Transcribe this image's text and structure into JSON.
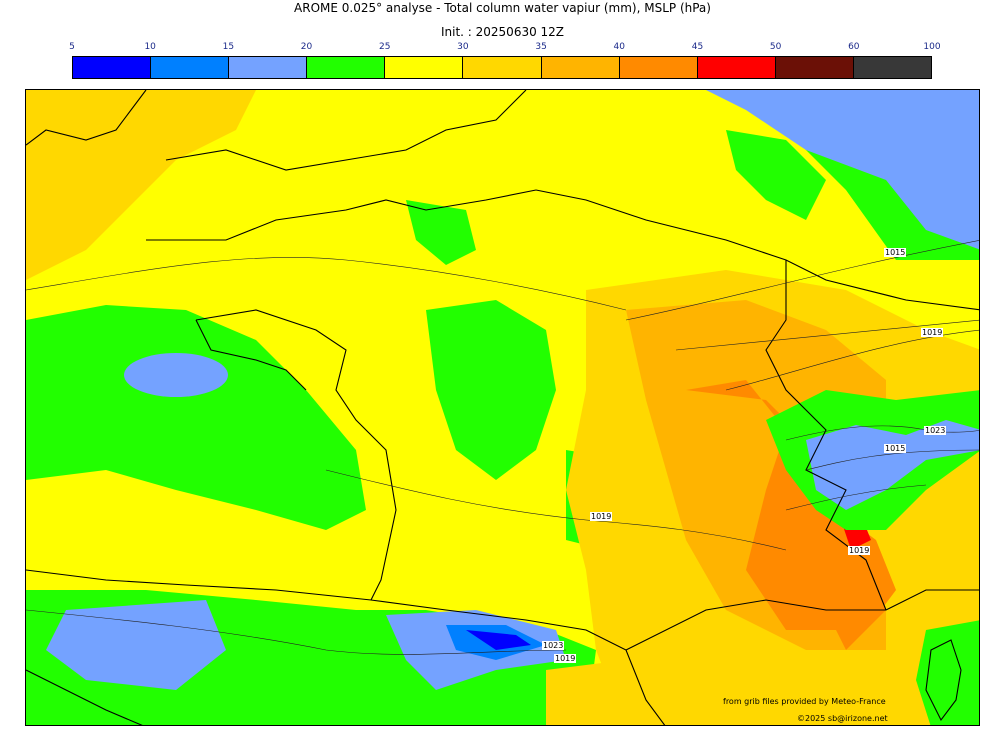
{
  "header": {
    "title": "AROME 0.025° analyse - Total column water vapiur (mm), MSLP (hPa)",
    "init": "Init. : 20250630 12Z"
  },
  "colorbar": {
    "ticks": [
      "5",
      "10",
      "15",
      "20",
      "25",
      "30",
      "35",
      "40",
      "45",
      "50",
      "60",
      "100"
    ],
    "colors": [
      "#0000ff",
      "#0080ff",
      "#74a2ff",
      "#22ff00",
      "#ffff00",
      "#ffd800",
      "#ffb400",
      "#ff8a00",
      "#ff0000",
      "#6b1006",
      "#383838"
    ]
  },
  "map": {
    "isobar_labels": [
      "1015",
      "1019",
      "1023",
      "1015",
      "1019",
      "1019",
      "1023",
      "1019"
    ],
    "credits": {
      "source": "from grib files provided by Meteo-France",
      "copyright": "©2025 sb@irizone.net"
    }
  }
}
